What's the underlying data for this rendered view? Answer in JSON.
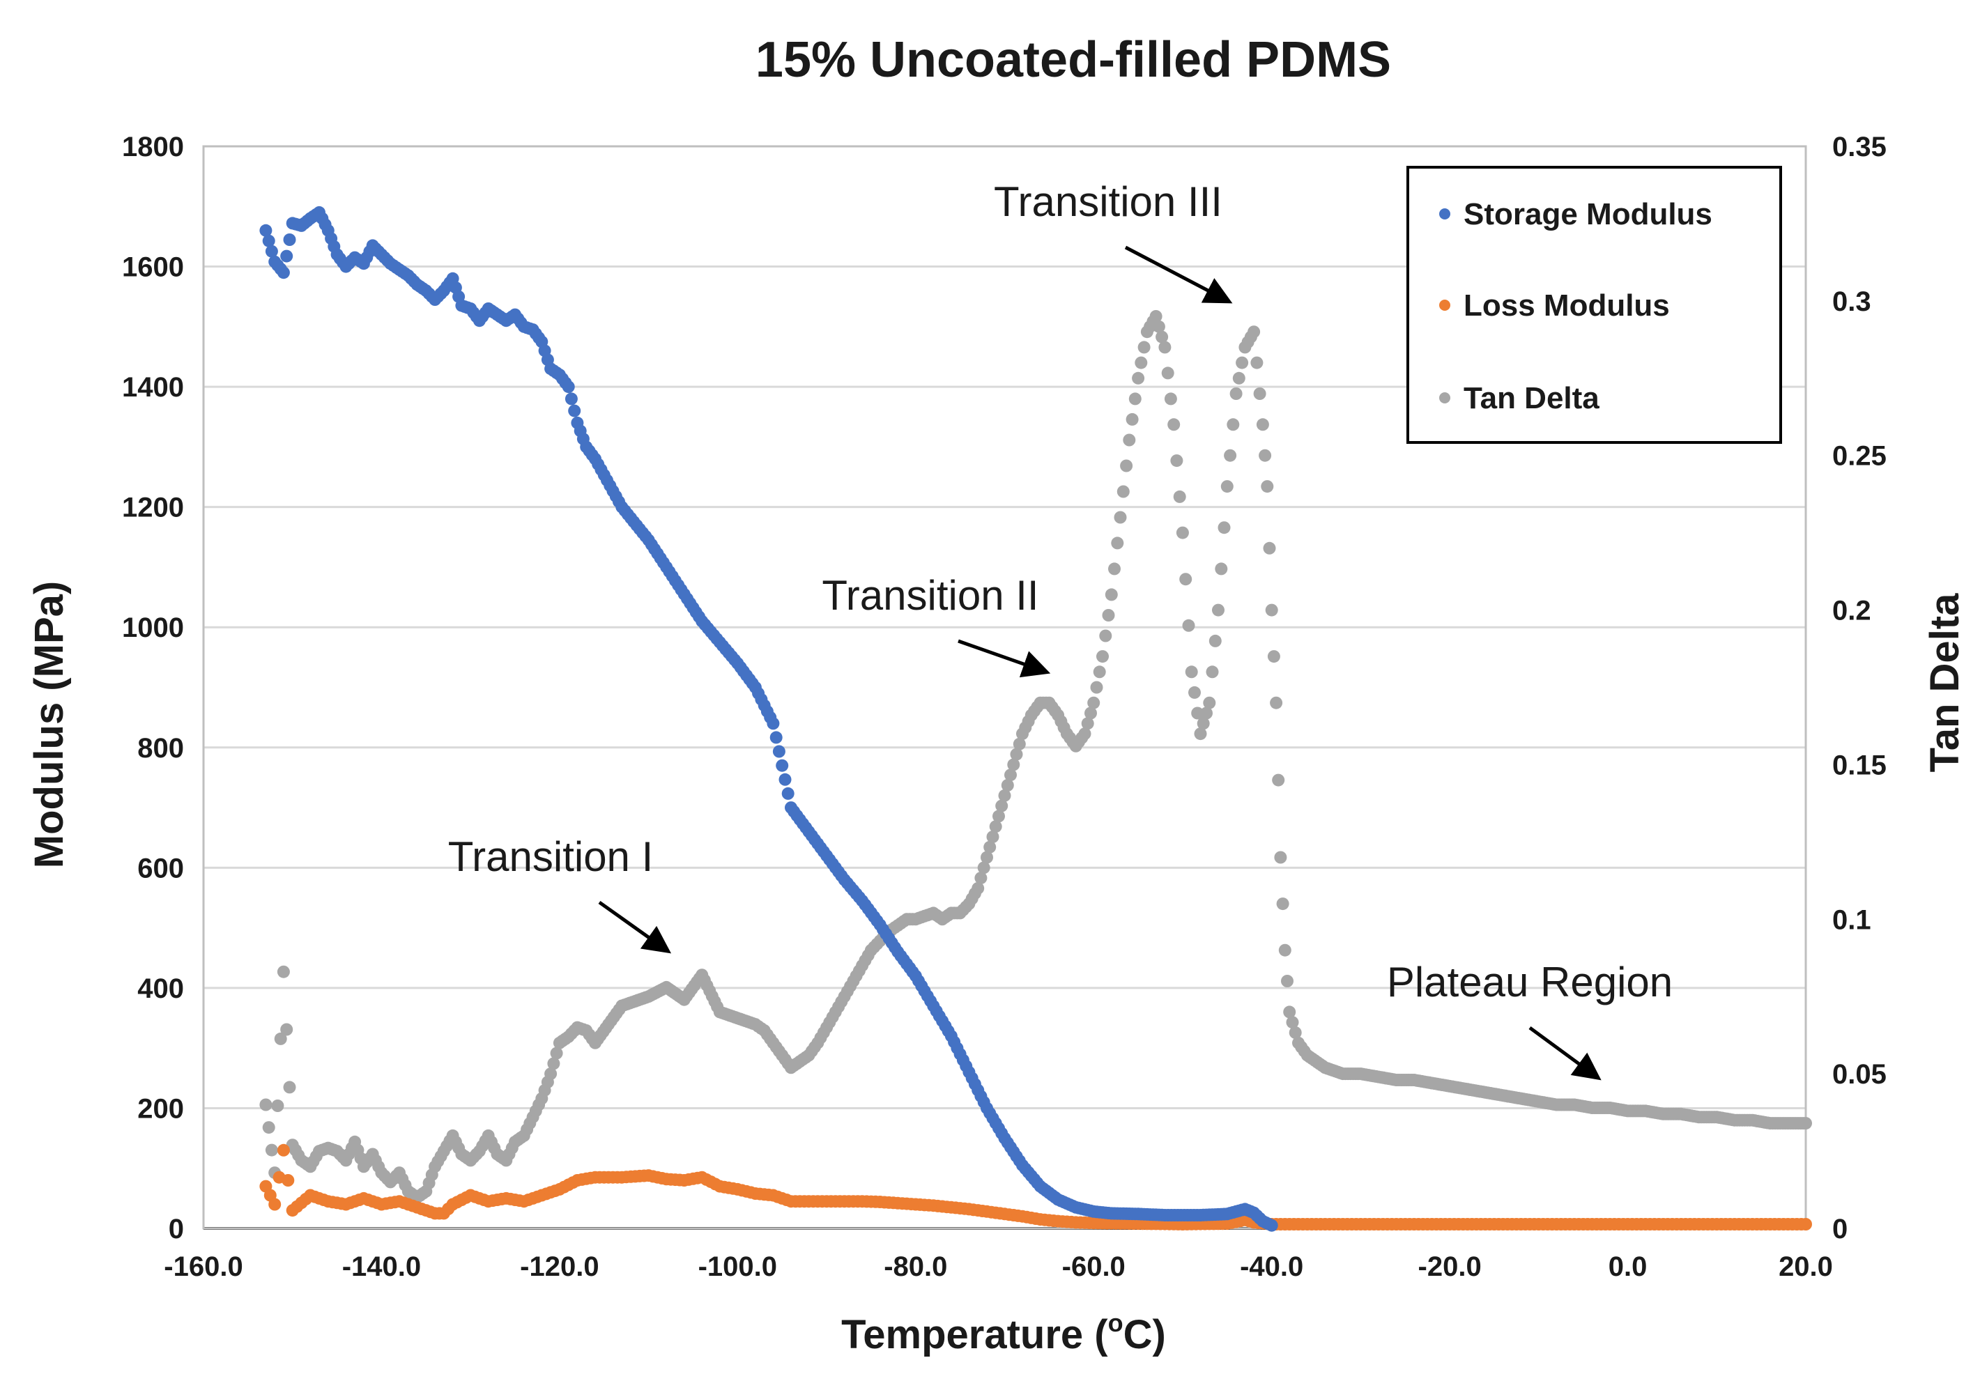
{
  "chart_data": {
    "type": "scatter",
    "title": "15% Uncoated-filled PDMS",
    "xlabel": "Temperature (°C)",
    "xlabel_parts": {
      "main": "Temperature (",
      "sup": "o",
      "tail": "C)"
    },
    "ylabel": "Modulus (MPa)",
    "y2label": "Tan Delta",
    "xlim": [
      -160,
      20
    ],
    "ylim": [
      0,
      1800
    ],
    "y2lim": [
      0,
      0.35
    ],
    "x_ticks": [
      "-160.0",
      "-140.0",
      "-120.0",
      "-100.0",
      "-80.0",
      "-60.0",
      "-40.0",
      "-20.0",
      "0.0",
      "20.0"
    ],
    "y_ticks": [
      "0",
      "200",
      "400",
      "600",
      "800",
      "1000",
      "1200",
      "1400",
      "1600",
      "1800"
    ],
    "y2_ticks": [
      "0",
      "0.05",
      "0.1",
      "0.15",
      "0.2",
      "0.25",
      "0.3",
      "0.35"
    ],
    "grid": true,
    "legend_position": "top-right",
    "series": [
      {
        "name": "Storage Modulus",
        "axis": "left",
        "color": "#4472C4",
        "points": [
          [
            -153,
            1660
          ],
          [
            -152,
            1608
          ],
          [
            -151,
            1590
          ],
          [
            -150,
            1672
          ],
          [
            -149,
            1668
          ],
          [
            -148,
            1680
          ],
          [
            -147,
            1690
          ],
          [
            -146,
            1660
          ],
          [
            -145,
            1620
          ],
          [
            -144,
            1600
          ],
          [
            -143,
            1615
          ],
          [
            -142,
            1605
          ],
          [
            -141,
            1635
          ],
          [
            -140,
            1620
          ],
          [
            -139,
            1605
          ],
          [
            -138,
            1595
          ],
          [
            -137,
            1585
          ],
          [
            -136,
            1570
          ],
          [
            -135,
            1560
          ],
          [
            -134,
            1545
          ],
          [
            -133,
            1560
          ],
          [
            -132,
            1580
          ],
          [
            -131,
            1535
          ],
          [
            -130,
            1530
          ],
          [
            -129,
            1510
          ],
          [
            -128,
            1530
          ],
          [
            -127,
            1520
          ],
          [
            -126,
            1510
          ],
          [
            -125,
            1520
          ],
          [
            -124,
            1500
          ],
          [
            -123,
            1495
          ],
          [
            -122,
            1475
          ],
          [
            -121,
            1430
          ],
          [
            -120,
            1420
          ],
          [
            -119,
            1400
          ],
          [
            -118,
            1340
          ],
          [
            -117,
            1300
          ],
          [
            -116,
            1280
          ],
          [
            -113,
            1200
          ],
          [
            -110,
            1145
          ],
          [
            -108,
            1100
          ],
          [
            -106,
            1055
          ],
          [
            -104,
            1010
          ],
          [
            -102,
            975
          ],
          [
            -100,
            940
          ],
          [
            -98,
            900
          ],
          [
            -96,
            840
          ],
          [
            -95,
            770
          ],
          [
            -94,
            700
          ],
          [
            -92,
            660
          ],
          [
            -90,
            620
          ],
          [
            -88,
            580
          ],
          [
            -86,
            545
          ],
          [
            -84,
            505
          ],
          [
            -82,
            460
          ],
          [
            -80,
            420
          ],
          [
            -78,
            370
          ],
          [
            -76,
            320
          ],
          [
            -74,
            260
          ],
          [
            -72,
            200
          ],
          [
            -70,
            150
          ],
          [
            -68,
            105
          ],
          [
            -66,
            70
          ],
          [
            -64,
            48
          ],
          [
            -62,
            35
          ],
          [
            -60,
            28
          ],
          [
            -58,
            25
          ],
          [
            -55,
            24
          ],
          [
            -52,
            22
          ],
          [
            -48,
            22
          ],
          [
            -45,
            24
          ],
          [
            -43,
            32
          ],
          [
            -42,
            26
          ],
          [
            -41,
            12
          ],
          [
            -40,
            5
          ]
        ]
      },
      {
        "name": "Loss Modulus",
        "axis": "left",
        "color": "#ED7D31",
        "points": [
          [
            -153,
            70
          ],
          [
            -152,
            40
          ],
          [
            -151,
            130
          ],
          [
            -150,
            30
          ],
          [
            -148,
            55
          ],
          [
            -146,
            45
          ],
          [
            -144,
            40
          ],
          [
            -142,
            50
          ],
          [
            -140,
            40
          ],
          [
            -138,
            45
          ],
          [
            -136,
            35
          ],
          [
            -134,
            25
          ],
          [
            -133,
            25
          ],
          [
            -132,
            40
          ],
          [
            -130,
            55
          ],
          [
            -128,
            45
          ],
          [
            -126,
            50
          ],
          [
            -124,
            45
          ],
          [
            -122,
            55
          ],
          [
            -120,
            65
          ],
          [
            -118,
            80
          ],
          [
            -116,
            85
          ],
          [
            -113,
            85
          ],
          [
            -110,
            88
          ],
          [
            -108,
            82
          ],
          [
            -106,
            80
          ],
          [
            -104,
            85
          ],
          [
            -102,
            70
          ],
          [
            -100,
            65
          ],
          [
            -98,
            58
          ],
          [
            -96,
            55
          ],
          [
            -94,
            45
          ],
          [
            -92,
            45
          ],
          [
            -90,
            45
          ],
          [
            -88,
            45
          ],
          [
            -86,
            45
          ],
          [
            -84,
            44
          ],
          [
            -82,
            42
          ],
          [
            -80,
            40
          ],
          [
            -78,
            38
          ],
          [
            -76,
            35
          ],
          [
            -74,
            32
          ],
          [
            -72,
            28
          ],
          [
            -70,
            24
          ],
          [
            -68,
            20
          ],
          [
            -66,
            15
          ],
          [
            -64,
            12
          ],
          [
            -62,
            10
          ],
          [
            -60,
            9
          ],
          [
            -55,
            8
          ],
          [
            -50,
            7
          ],
          [
            -45,
            8
          ],
          [
            -43,
            14
          ],
          [
            -42,
            10
          ],
          [
            -40,
            7
          ],
          [
            -30,
            7
          ],
          [
            -20,
            7
          ],
          [
            -10,
            7
          ],
          [
            0,
            7
          ],
          [
            10,
            7
          ],
          [
            20,
            7
          ]
        ]
      },
      {
        "name": "Tan Delta",
        "axis": "right",
        "color": "#A6A6A6",
        "points": [
          [
            -153,
            0.04
          ],
          [
            -152,
            0.018
          ],
          [
            -151,
            0.083
          ],
          [
            -150,
            0.027
          ],
          [
            -149,
            0.022
          ],
          [
            -148,
            0.02
          ],
          [
            -147,
            0.025
          ],
          [
            -146,
            0.026
          ],
          [
            -145,
            0.025
          ],
          [
            -144,
            0.022
          ],
          [
            -143,
            0.028
          ],
          [
            -142,
            0.02
          ],
          [
            -141,
            0.024
          ],
          [
            -140,
            0.018
          ],
          [
            -139,
            0.015
          ],
          [
            -138,
            0.018
          ],
          [
            -137,
            0.012
          ],
          [
            -136,
            0.01
          ],
          [
            -135,
            0.012
          ],
          [
            -134,
            0.02
          ],
          [
            -133,
            0.025
          ],
          [
            -132,
            0.03
          ],
          [
            -131,
            0.024
          ],
          [
            -130,
            0.022
          ],
          [
            -129,
            0.025
          ],
          [
            -128,
            0.03
          ],
          [
            -127,
            0.024
          ],
          [
            -126,
            0.022
          ],
          [
            -125,
            0.028
          ],
          [
            -124,
            0.03
          ],
          [
            -123,
            0.036
          ],
          [
            -122,
            0.042
          ],
          [
            -121,
            0.05
          ],
          [
            -120,
            0.06
          ],
          [
            -119,
            0.062
          ],
          [
            -118,
            0.065
          ],
          [
            -117,
            0.064
          ],
          [
            -116,
            0.06
          ],
          [
            -113,
            0.072
          ],
          [
            -110,
            0.075
          ],
          [
            -108,
            0.078
          ],
          [
            -106,
            0.074
          ],
          [
            -104,
            0.082
          ],
          [
            -102,
            0.07
          ],
          [
            -100,
            0.068
          ],
          [
            -98,
            0.066
          ],
          [
            -97,
            0.064
          ],
          [
            -96,
            0.06
          ],
          [
            -95,
            0.056
          ],
          [
            -94,
            0.052
          ],
          [
            -93,
            0.054
          ],
          [
            -92,
            0.056
          ],
          [
            -91,
            0.06
          ],
          [
            -90,
            0.065
          ],
          [
            -89,
            0.07
          ],
          [
            -88,
            0.075
          ],
          [
            -87,
            0.08
          ],
          [
            -86,
            0.085
          ],
          [
            -85,
            0.09
          ],
          [
            -84,
            0.093
          ],
          [
            -83,
            0.096
          ],
          [
            -82,
            0.098
          ],
          [
            -81,
            0.1
          ],
          [
            -80,
            0.1
          ],
          [
            -79,
            0.101
          ],
          [
            -78,
            0.102
          ],
          [
            -77,
            0.1
          ],
          [
            -76,
            0.102
          ],
          [
            -75,
            0.102
          ],
          [
            -74,
            0.105
          ],
          [
            -73,
            0.11
          ],
          [
            -72,
            0.12
          ],
          [
            -71,
            0.13
          ],
          [
            -70,
            0.14
          ],
          [
            -69,
            0.15
          ],
          [
            -68,
            0.16
          ],
          [
            -67,
            0.166
          ],
          [
            -66,
            0.17
          ],
          [
            -65,
            0.17
          ],
          [
            -64,
            0.166
          ],
          [
            -63,
            0.16
          ],
          [
            -62,
            0.156
          ],
          [
            -61,
            0.16
          ],
          [
            -60,
            0.17
          ],
          [
            -59,
            0.185
          ],
          [
            -58,
            0.205
          ],
          [
            -57,
            0.23
          ],
          [
            -56,
            0.255
          ],
          [
            -55,
            0.275
          ],
          [
            -54,
            0.29
          ],
          [
            -53,
            0.295
          ],
          [
            -52,
            0.285
          ],
          [
            -51,
            0.26
          ],
          [
            -50,
            0.225
          ],
          [
            -49,
            0.18
          ],
          [
            -48,
            0.16
          ],
          [
            -47,
            0.17
          ],
          [
            -46,
            0.2
          ],
          [
            -45,
            0.24
          ],
          [
            -44,
            0.27
          ],
          [
            -43,
            0.285
          ],
          [
            -42,
            0.29
          ],
          [
            -41,
            0.26
          ],
          [
            -40.5,
            0.24
          ],
          [
            -40,
            0.2
          ],
          [
            -39.5,
            0.17
          ],
          [
            -39,
            0.12
          ],
          [
            -38.5,
            0.09
          ],
          [
            -38,
            0.07
          ],
          [
            -37,
            0.06
          ],
          [
            -36,
            0.056
          ],
          [
            -34,
            0.052
          ],
          [
            -32,
            0.05
          ],
          [
            -30,
            0.05
          ],
          [
            -28,
            0.049
          ],
          [
            -26,
            0.048
          ],
          [
            -24,
            0.048
          ],
          [
            -22,
            0.047
          ],
          [
            -20,
            0.046
          ],
          [
            -18,
            0.045
          ],
          [
            -16,
            0.044
          ],
          [
            -14,
            0.043
          ],
          [
            -12,
            0.042
          ],
          [
            -10,
            0.041
          ],
          [
            -8,
            0.04
          ],
          [
            -6,
            0.04
          ],
          [
            -4,
            0.039
          ],
          [
            -2,
            0.039
          ],
          [
            0,
            0.038
          ],
          [
            2,
            0.038
          ],
          [
            4,
            0.037
          ],
          [
            6,
            0.037
          ],
          [
            8,
            0.036
          ],
          [
            10,
            0.036
          ],
          [
            12,
            0.035
          ],
          [
            14,
            0.035
          ],
          [
            16,
            0.034
          ],
          [
            18,
            0.034
          ],
          [
            20,
            0.034
          ]
        ]
      }
    ],
    "annotations": [
      {
        "text": "Transition I",
        "target_x": -107,
        "target_y2": 0.088
      },
      {
        "text": "Transition II",
        "target_x": -64.5,
        "target_y2": 0.178
      },
      {
        "text": "Transition III",
        "target_x": -44,
        "target_y2": 0.298
      },
      {
        "text": "Plateau Region",
        "target_x": -2.5,
        "target_y2": 0.047
      }
    ]
  }
}
